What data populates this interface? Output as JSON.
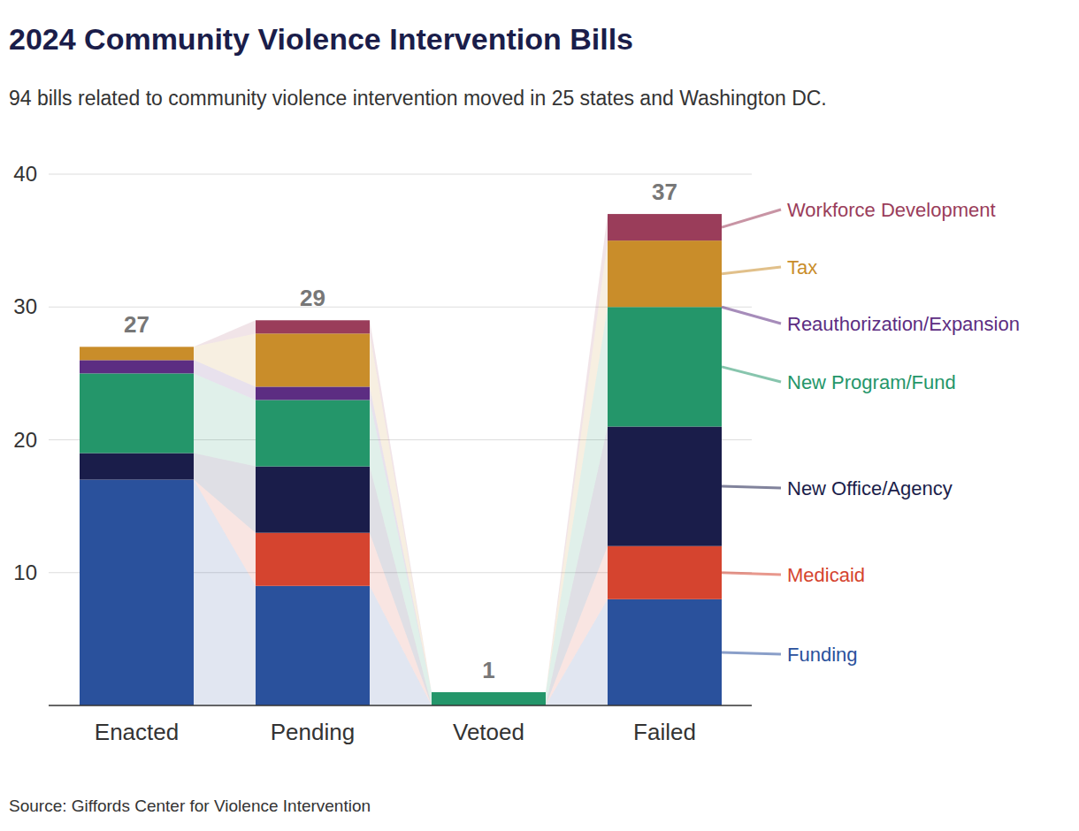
{
  "chart_data": {
    "type": "bar",
    "stacked": true,
    "grid": true,
    "title": "2024 Community Violence Intervention Bills",
    "subtitle": "94 bills related to community violence intervention moved in 25 states and Washington DC.",
    "source": "Source: Giffords Center for Violence Intervention",
    "categories": [
      "Enacted",
      "Pending",
      "Vetoed",
      "Failed"
    ],
    "totals": [
      27,
      29,
      1,
      37
    ],
    "ylim": [
      0,
      40
    ],
    "yticks": [
      10,
      20,
      30,
      40
    ],
    "series": [
      {
        "name": "Funding",
        "color": "#2a519c",
        "values": [
          17,
          9,
          0,
          8
        ]
      },
      {
        "name": "Medicaid",
        "color": "#d5442f",
        "values": [
          0,
          4,
          0,
          4
        ]
      },
      {
        "name": "New Office/Agency",
        "color": "#1a1d4a",
        "values": [
          2,
          5,
          0,
          9
        ]
      },
      {
        "name": "New Program/Fund",
        "color": "#24966a",
        "values": [
          6,
          5,
          1,
          9
        ]
      },
      {
        "name": "Reauthorization/Expansion",
        "color": "#5c2d82",
        "values": [
          1,
          1,
          0,
          0
        ]
      },
      {
        "name": "Tax",
        "color": "#c98d2a",
        "values": [
          1,
          4,
          0,
          5
        ]
      },
      {
        "name": "Workforce Development",
        "color": "#9a3d5a",
        "values": [
          0,
          1,
          0,
          2
        ]
      }
    ]
  }
}
